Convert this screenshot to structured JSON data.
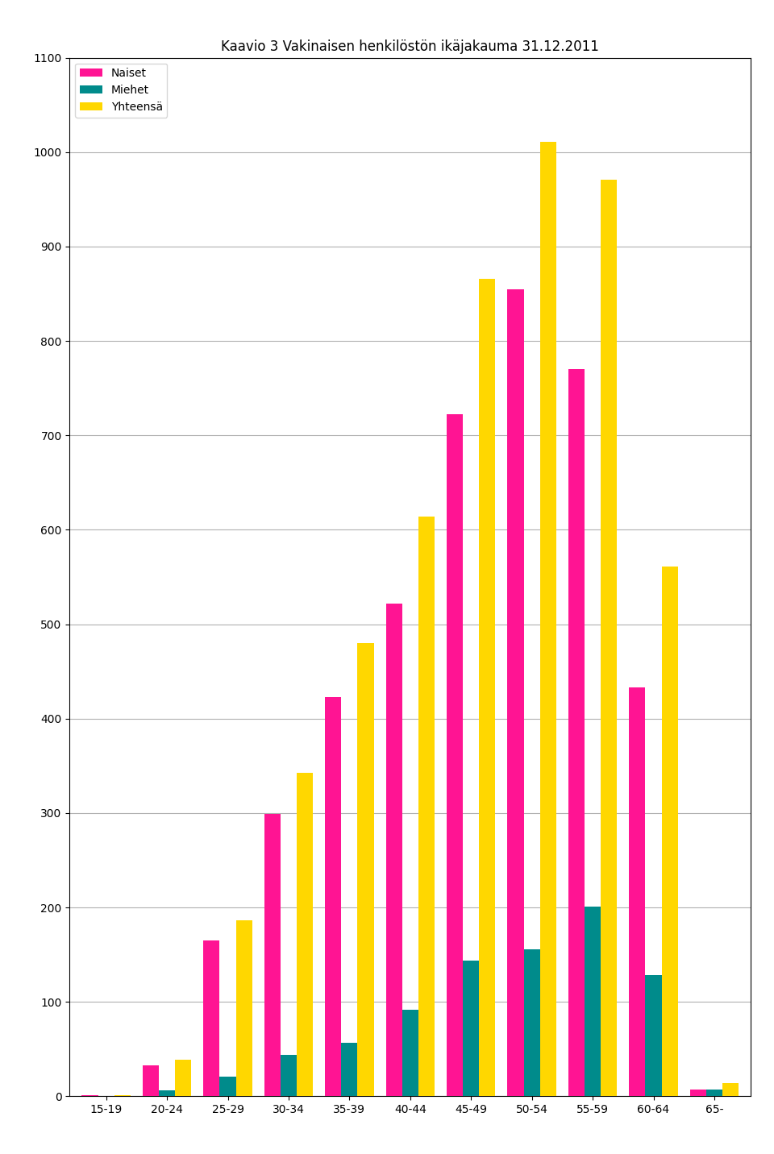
{
  "chart_data": {
    "type": "bar",
    "title": "Kaavio 3 Vakinaisen henkilöstön ikäjakauma 31.12.2011",
    "categories": [
      "15-19",
      "20-24",
      "25-29",
      "30-34",
      "35-39",
      "40-44",
      "45-49",
      "50-54",
      "55-59",
      "60-64",
      "65-"
    ],
    "series": [
      {
        "name": "Naiset",
        "color": "#FF1493",
        "values": [
          1,
          33,
          165,
          299,
          423,
          522,
          722,
          855,
          770,
          433,
          7
        ]
      },
      {
        "name": "Miehet",
        "color": "#008B8B",
        "values": [
          0,
          6,
          21,
          44,
          57,
          92,
          144,
          156,
          201,
          128,
          7
        ]
      },
      {
        "name": "Yhteensä",
        "color": "#FFD700",
        "values": [
          1,
          39,
          186,
          343,
          480,
          614,
          866,
          1011,
          971,
          561,
          14
        ]
      }
    ],
    "ylim": [
      0,
      1100
    ],
    "yticks": [
      0,
      100,
      200,
      300,
      400,
      500,
      600,
      700,
      800,
      900,
      1000,
      1100
    ],
    "grid": true,
    "legend": "upper left"
  }
}
